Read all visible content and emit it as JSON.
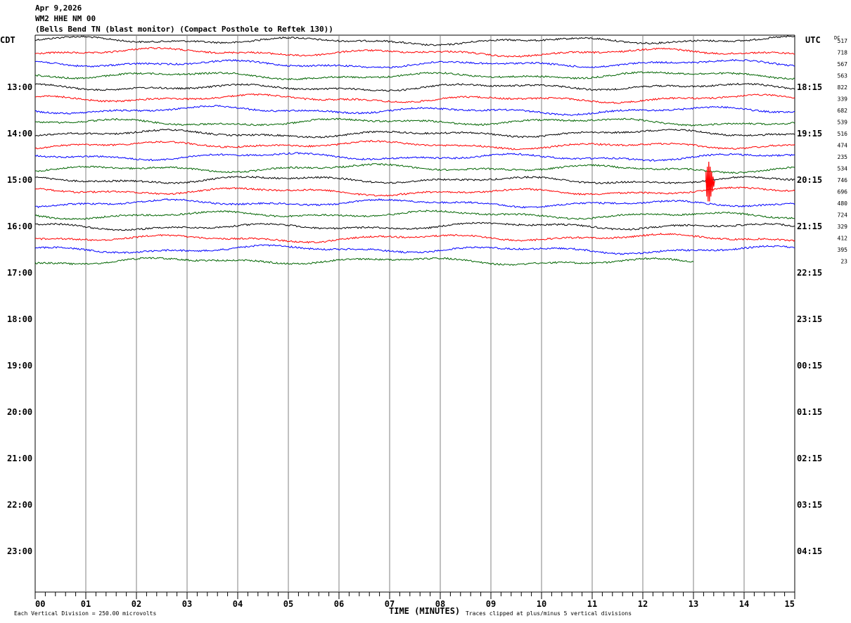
{
  "header": {
    "date": "Apr 9,2026",
    "station": "WM2 HHE NM 00",
    "description": "(Bells Bend TN (blast monitor) (Compact Posthole to Reftek 130))"
  },
  "chart_data": {
    "type": "line",
    "title": "Apr 9,2026 WM2 HHE NM 00",
    "xlabel": "TIME (MINUTES)",
    "xlim": [
      0,
      15
    ],
    "x_tick_labels": [
      "00",
      "01",
      "02",
      "03",
      "04",
      "05",
      "06",
      "07",
      "08",
      "09",
      "10",
      "11",
      "12",
      "13",
      "14",
      "15"
    ],
    "left_axis_label": "CDT",
    "right_axis_label": "UTC",
    "dc_label": "DC",
    "left_hour_labels": [
      "13:00",
      "14:00",
      "15:00",
      "16:00",
      "17:00",
      "18:00",
      "19:00",
      "20:00",
      "21:00",
      "22:00",
      "23:00"
    ],
    "right_hour_labels": [
      "18:15",
      "19:15",
      "20:15",
      "21:15",
      "22:15",
      "23:15",
      "00:15",
      "01:15",
      "02:15",
      "03:15",
      "04:15"
    ],
    "dc_offsets": [
      "517",
      "718",
      "567",
      "563",
      "822",
      "339",
      "682",
      "539",
      "516",
      "474",
      "235",
      "534",
      "746",
      "696",
      "480",
      "724",
      "329",
      "412",
      "395",
      "23"
    ],
    "trace_colors": [
      "#000000",
      "#ff0000",
      "#0000ff",
      "#006400"
    ],
    "trace_count": 20,
    "last_trace_end_minute": 13,
    "grid": true,
    "scale_note": "Each Vertical Division =  250.00 microvolts",
    "clip_note": "Traces clipped at plus/minus 5 vertical divisions"
  }
}
